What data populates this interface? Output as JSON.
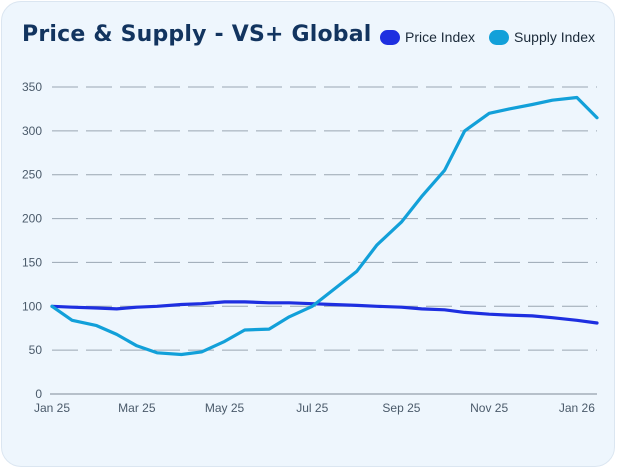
{
  "chart_data": {
    "type": "line",
    "title": "Price & Supply - VS+ Global",
    "xlabel": "",
    "ylabel": "",
    "ylim": [
      0,
      350
    ],
    "yticks": [
      0,
      50,
      100,
      150,
      200,
      250,
      300,
      350
    ],
    "grid": true,
    "legend_position": "top-right",
    "x_tick_labels": [
      "Jan 25",
      "Mar 25",
      "May 25",
      "Jul 25",
      "Sep 25",
      "Nov 25",
      "Jan 26"
    ],
    "x": [
      "2025-01-01",
      "2025-01-15",
      "2025-02-01",
      "2025-02-15",
      "2025-03-01",
      "2025-03-15",
      "2025-04-01",
      "2025-04-15",
      "2025-05-01",
      "2025-05-15",
      "2025-06-01",
      "2025-06-15",
      "2025-07-01",
      "2025-07-15",
      "2025-08-01",
      "2025-08-15",
      "2025-09-01",
      "2025-09-15",
      "2025-10-01",
      "2025-10-15",
      "2025-11-01",
      "2025-11-15",
      "2025-12-01",
      "2025-12-15",
      "2026-01-01",
      "2026-01-15"
    ],
    "series": [
      {
        "name": "Price Index",
        "color": "#1e2fe0",
        "values": [
          100,
          99,
          98,
          97,
          99,
          100,
          102,
          103,
          105,
          105,
          104,
          104,
          103,
          102,
          101,
          100,
          99,
          97,
          96,
          93,
          91,
          90,
          89,
          87,
          84,
          81
        ]
      },
      {
        "name": "Supply Index",
        "color": "#12a0d9",
        "values": [
          100,
          84,
          78,
          68,
          55,
          47,
          45,
          48,
          60,
          73,
          74,
          88,
          100,
          118,
          140,
          170,
          196,
          225,
          255,
          300,
          320,
          325,
          330,
          335,
          338,
          315
        ]
      }
    ]
  }
}
